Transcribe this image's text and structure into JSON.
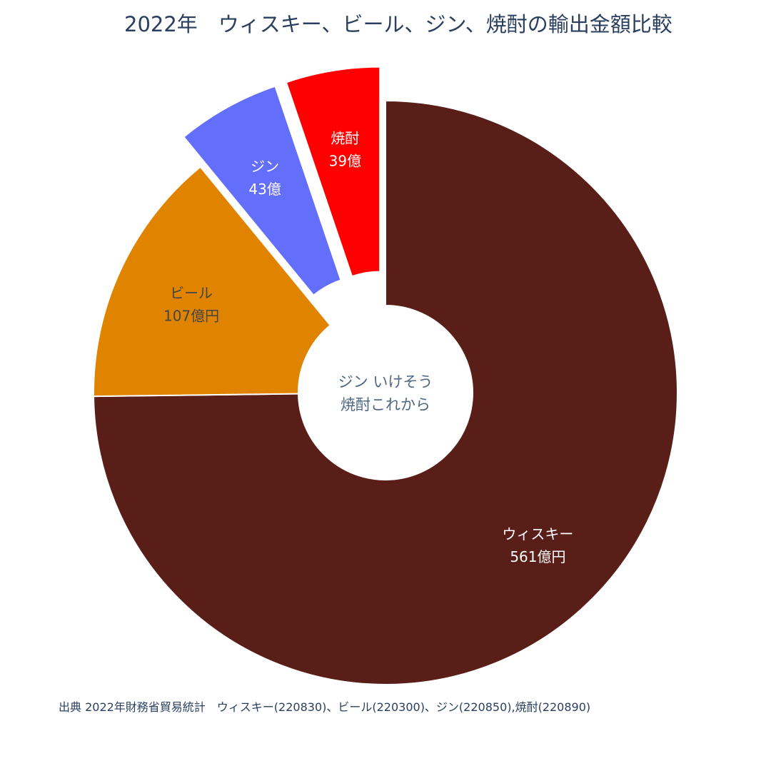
{
  "title": "2022年　ウィスキー、ビール、ジン、焼酎の輸出金額比較",
  "center_annotation": {
    "line1": "ジン いけそう",
    "line2": "焼酎これから"
  },
  "source_note": "出典 2022年財務省貿易統計　ウィスキー(220830)、ビール(220300)、ジン(220850),焼酎(220890)",
  "chart_data": {
    "type": "pie",
    "hole": true,
    "direction": "clockwise",
    "start": "top",
    "slices": [
      {
        "label": "ウィスキー",
        "value": 561,
        "text_line1": "ウィスキー",
        "text_line2": "561億円",
        "color": "#5a1e19",
        "text_color": "#ffffff",
        "pulled": false
      },
      {
        "label": "ビール",
        "value": 107,
        "text_line1": "ビール",
        "text_line2": "107億円",
        "color": "#e08400",
        "text_color": "#444444",
        "pulled": false
      },
      {
        "label": "ジン",
        "value": 43,
        "text_line1": "ジン",
        "text_line2": "43億",
        "color": "#636efa",
        "text_color": "#ffffff",
        "pulled": true
      },
      {
        "label": "焼酎",
        "value": 39,
        "text_line1": "焼酎",
        "text_line2": "39億",
        "color": "#ff0000",
        "text_color": "#ffffff",
        "pulled": true
      }
    ]
  }
}
